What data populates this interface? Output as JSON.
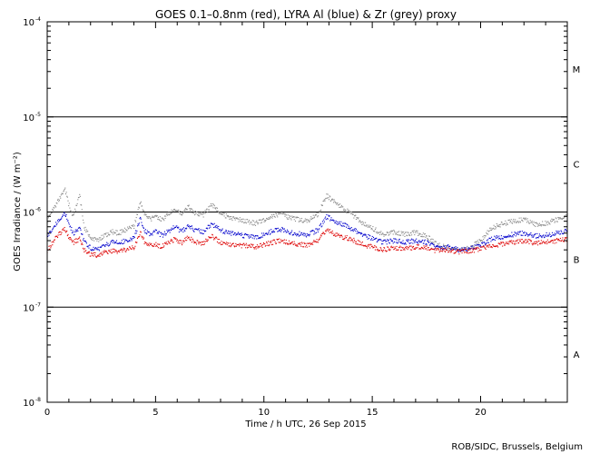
{
  "chart_data": {
    "type": "scatter",
    "title": "GOES 0.1–0.8nm (red), LYRA Al (blue) & Zr (grey) proxy",
    "xlabel": "Time / h UTC, 26 Sep 2015",
    "ylabel": "GOES Irradiance / (W m⁻²)",
    "credit": "ROB/SIDC, Brussels, Belgium",
    "xlim": [
      0,
      24
    ],
    "ylim": [
      1e-08,
      0.0001
    ],
    "yscale": "log",
    "x_ticks": [
      0,
      5,
      10,
      15,
      20
    ],
    "x_tick_labels": [
      "0",
      "5",
      "10",
      "15",
      "20"
    ],
    "y_ticks": [
      {
        "value": 0.0001,
        "base": "10",
        "exp": "-4"
      },
      {
        "value": 1e-05,
        "base": "10",
        "exp": "-5"
      },
      {
        "value": 1e-06,
        "base": "10",
        "exp": "-6"
      },
      {
        "value": 1e-07,
        "base": "10",
        "exp": "-7"
      },
      {
        "value": 1e-08,
        "base": "10",
        "exp": "-8"
      }
    ],
    "reference_lines": [
      1e-05,
      1e-06,
      1e-07
    ],
    "flare_classes": [
      {
        "label": "M",
        "y": 3.2e-05
      },
      {
        "label": "C",
        "y": 3.2e-06
      },
      {
        "label": "B",
        "y": 3.2e-07
      },
      {
        "label": "A",
        "y": 3.2e-08
      }
    ],
    "colors": {
      "goes": "#dd0000",
      "lyra_al": "#0000cc",
      "lyra_zr": "#888888",
      "axes": "#000000"
    },
    "series": [
      {
        "name": "GOES 0.1-0.8nm",
        "color": "#dd0000",
        "x": [
          0,
          0.3,
          0.6,
          0.8,
          1.0,
          1.2,
          1.5,
          1.7,
          2.0,
          2.3,
          2.6,
          3.0,
          3.3,
          3.6,
          4.0,
          4.3,
          4.5,
          4.8,
          5.0,
          5.3,
          5.6,
          5.9,
          6.2,
          6.5,
          6.8,
          7.2,
          7.6,
          8.0,
          8.4,
          8.8,
          9.2,
          9.6,
          10.0,
          10.4,
          10.8,
          11.2,
          11.6,
          12.0,
          12.5,
          12.9,
          13.2,
          13.5,
          14.0,
          14.5,
          15.0,
          15.5,
          16.0,
          16.5,
          17.0,
          17.5,
          18.0,
          18.5,
          19.0,
          19.5,
          20.0,
          20.5,
          21.0,
          21.5,
          22.0,
          22.5,
          23.0,
          23.5,
          24.0
        ],
        "values": [
          3.9e-07,
          5e-07,
          6e-07,
          6.8e-07,
          5.5e-07,
          4.8e-07,
          5.2e-07,
          4e-07,
          3.6e-07,
          3.5e-07,
          3.7e-07,
          3.9e-07,
          3.8e-07,
          4e-07,
          4.2e-07,
          6.2e-07,
          4.8e-07,
          4.4e-07,
          4.6e-07,
          4.3e-07,
          4.8e-07,
          5.2e-07,
          4.7e-07,
          5.4e-07,
          4.9e-07,
          4.7e-07,
          5.6e-07,
          4.8e-07,
          4.6e-07,
          4.5e-07,
          4.4e-07,
          4.3e-07,
          4.5e-07,
          4.8e-07,
          5e-07,
          4.7e-07,
          4.6e-07,
          4.5e-07,
          5e-07,
          6.5e-07,
          6e-07,
          5.6e-07,
          5.2e-07,
          4.6e-07,
          4.3e-07,
          4e-07,
          4.2e-07,
          4.1e-07,
          4.3e-07,
          4.2e-07,
          3.9e-07,
          4e-07,
          3.8e-07,
          3.9e-07,
          4.1e-07,
          4.4e-07,
          4.6e-07,
          4.8e-07,
          5e-07,
          4.7e-07,
          4.8e-07,
          5e-07,
          5.2e-07
        ]
      },
      {
        "name": "LYRA Al proxy",
        "color": "#0000cc",
        "x": [
          0,
          0.3,
          0.6,
          0.8,
          1.0,
          1.2,
          1.5,
          1.7,
          2.0,
          2.3,
          2.6,
          3.0,
          3.3,
          3.6,
          4.0,
          4.3,
          4.5,
          4.8,
          5.0,
          5.3,
          5.6,
          5.9,
          6.2,
          6.5,
          6.8,
          7.2,
          7.6,
          8.0,
          8.4,
          8.8,
          9.2,
          9.6,
          10.0,
          10.4,
          10.8,
          11.2,
          11.6,
          12.0,
          12.5,
          12.9,
          13.2,
          13.5,
          14.0,
          14.5,
          15.0,
          15.5,
          16.0,
          16.5,
          17.0,
          17.5,
          18.0,
          18.5,
          19.0,
          19.5,
          20.0,
          20.5,
          21.0,
          21.5,
          22.0,
          22.5,
          23.0,
          23.5,
          24.0
        ],
        "values": [
          5.5e-07,
          7e-07,
          8.5e-07,
          1e-06,
          7.5e-07,
          6e-07,
          6.8e-07,
          5e-07,
          4.2e-07,
          4e-07,
          4.4e-07,
          4.8e-07,
          4.7e-07,
          5e-07,
          5.3e-07,
          8.5e-07,
          6.4e-07,
          5.8e-07,
          6.2e-07,
          5.7e-07,
          6.3e-07,
          7e-07,
          6.2e-07,
          7.2e-07,
          6.5e-07,
          6.2e-07,
          7.5e-07,
          6.4e-07,
          6e-07,
          5.8e-07,
          5.6e-07,
          5.4e-07,
          5.8e-07,
          6.3e-07,
          6.6e-07,
          6.1e-07,
          5.9e-07,
          5.7e-07,
          6.5e-07,
          9e-07,
          8.2e-07,
          7.6e-07,
          6.8e-07,
          5.8e-07,
          5.3e-07,
          4.8e-07,
          5e-07,
          4.8e-07,
          5e-07,
          4.8e-07,
          4.2e-07,
          4.3e-07,
          4e-07,
          4.1e-07,
          4.5e-07,
          5.2e-07,
          5.5e-07,
          5.8e-07,
          6e-07,
          5.6e-07,
          5.7e-07,
          6e-07,
          6.3e-07
        ]
      },
      {
        "name": "LYRA Zr proxy",
        "color": "#888888",
        "x": [
          0,
          0.3,
          0.6,
          0.8,
          1.0,
          1.2,
          1.5,
          1.7,
          2.0,
          2.3,
          2.6,
          3.0,
          3.3,
          3.6,
          4.0,
          4.3,
          4.5,
          4.8,
          5.0,
          5.3,
          5.6,
          5.9,
          6.2,
          6.5,
          6.8,
          7.2,
          7.6,
          8.0,
          8.4,
          8.8,
          9.2,
          9.6,
          10.0,
          10.4,
          10.8,
          11.2,
          11.6,
          12.0,
          12.5,
          12.9,
          13.2,
          13.5,
          14.0,
          14.5,
          15.0,
          15.5,
          16.0,
          16.5,
          17.0,
          17.5,
          18.0,
          18.5,
          19.0,
          19.5,
          20.0,
          20.5,
          21.0,
          21.5,
          22.0,
          22.5,
          23.0,
          23.5,
          24.0
        ],
        "values": [
          8e-07,
          1.1e-06,
          1.4e-06,
          1.8e-06,
          1.2e-06,
          9e-07,
          1.5e-06,
          7e-07,
          5.5e-07,
          5e-07,
          5.6e-07,
          6.2e-07,
          6e-07,
          6.5e-07,
          7e-07,
          1.3e-06,
          9.5e-07,
          8.5e-07,
          9.2e-07,
          8.2e-07,
          9.5e-07,
          1.1e-06,
          9.4e-07,
          1.15e-06,
          9.8e-07,
          9.3e-07,
          1.2e-06,
          9.6e-07,
          8.8e-07,
          8.4e-07,
          8e-07,
          7.6e-07,
          8.2e-07,
          9e-07,
          9.6e-07,
          8.7e-07,
          8.3e-07,
          8e-07,
          9.5e-07,
          1.5e-06,
          1.3e-06,
          1.15e-06,
          9.8e-07,
          7.8e-07,
          6.8e-07,
          5.8e-07,
          6.2e-07,
          5.8e-07,
          6.1e-07,
          5.6e-07,
          4.5e-07,
          4.2e-07,
          3.9e-07,
          4.2e-07,
          5e-07,
          6.8e-07,
          7.5e-07,
          8e-07,
          8.4e-07,
          7.4e-07,
          7.6e-07,
          8.3e-07,
          9e-07
        ]
      }
    ]
  }
}
